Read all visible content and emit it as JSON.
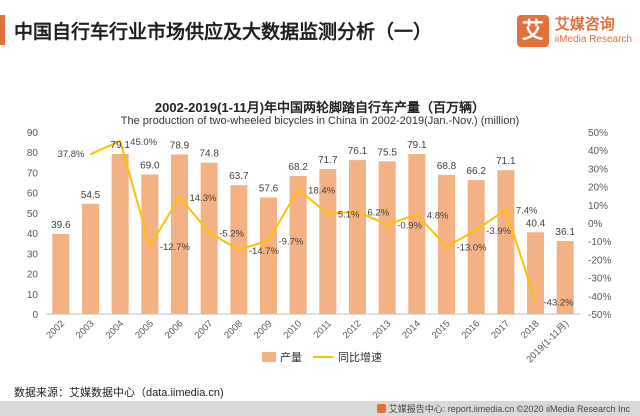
{
  "header": {
    "title": "中国自行车行业市场供应及大数据监测分析（一）",
    "brand_logo": "艾",
    "brand_name": "艾媒咨询",
    "brand_sub": "iiMedia Research",
    "accent_color": "#e2703a"
  },
  "chart_data": {
    "type": "bar",
    "title": "2002-2019(1-11月)年中国两轮脚踏自行车产量（百万辆）",
    "subtitle": "The production of two-wheeled bicycles in China in 2002-2019(Jan.-Nov.) (million)",
    "categories": [
      "2002",
      "2003",
      "2004",
      "2005",
      "2006",
      "2007",
      "2008",
      "2009",
      "2010",
      "2011",
      "2012",
      "2013",
      "2014",
      "2015",
      "2016",
      "2017",
      "2018",
      "2019(1-11月)"
    ],
    "series": [
      {
        "name": "产量",
        "type": "bar",
        "axis": "left",
        "color": "#f4b183",
        "values": [
          39.6,
          54.5,
          79.1,
          69.0,
          78.9,
          74.8,
          63.7,
          57.6,
          68.2,
          71.7,
          76.1,
          75.5,
          79.1,
          68.8,
          66.2,
          71.1,
          40.4,
          36.1
        ],
        "labels": [
          "39.6",
          "54.5",
          "79.1",
          "69.0",
          "78.9",
          "74.8",
          "63.7",
          "57.6",
          "68.2",
          "71.7",
          "76.1",
          "75.5",
          "79.1",
          "68.8",
          "66.2",
          "71.1",
          "40.4",
          "36.1"
        ]
      },
      {
        "name": "同比增速",
        "type": "line",
        "axis": "right",
        "color": "#ffc000",
        "values": [
          null,
          37.8,
          45.0,
          -12.7,
          14.3,
          -5.2,
          -14.7,
          -9.7,
          18.4,
          5.1,
          6.2,
          -0.9,
          4.8,
          -13.0,
          -3.9,
          7.4,
          -43.2,
          null
        ],
        "labels": [
          null,
          "37.8%",
          "45.0%",
          "-12.7%",
          "14.3%",
          "-5.2%",
          "-14.7%",
          "-9.7%",
          "18.4%",
          "5.1%",
          "6.2%",
          "-0.9%",
          "4.8%",
          "-13.0%",
          "-3.9%",
          "7.4%",
          "-43.2%",
          null
        ]
      }
    ],
    "y_left": {
      "min": 0,
      "max": 90,
      "step": 10,
      "ticks": [
        "0",
        "10",
        "20",
        "30",
        "40",
        "50",
        "60",
        "70",
        "80",
        "90"
      ]
    },
    "y_right": {
      "min": -50,
      "max": 50,
      "step": 10,
      "ticks": [
        "-50%",
        "-40%",
        "-30%",
        "-20%",
        "-10%",
        "0%",
        "10%",
        "20%",
        "30%",
        "40%",
        "50%"
      ]
    },
    "legend": [
      {
        "label": "产量",
        "kind": "bar"
      },
      {
        "label": "同比增速",
        "kind": "line"
      }
    ]
  },
  "footer": {
    "source": "数据来源：艾媒数据中心（data.iimedia.cn)",
    "copyright": "艾媒报告中心: report.iimedia.cn ©2020 iiMedia Research Inc"
  }
}
